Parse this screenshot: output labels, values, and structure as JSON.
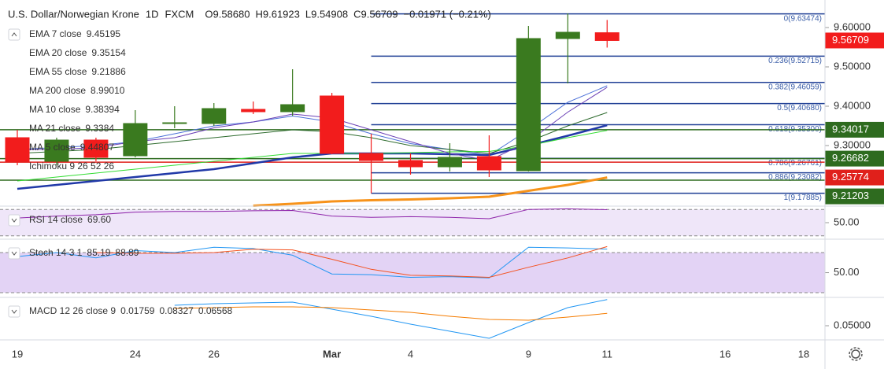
{
  "chart_data": [
    {
      "type": "candlestick",
      "title": "U.S. Dollar/Norwegian Krone",
      "interval": "1D",
      "source": "FXCM",
      "ohlc": [
        "O9.58680",
        "H9.61923",
        "L9.54908",
        "C9.56709"
      ],
      "change": "−0.01971 (−0.21%)",
      "categories": [
        "19",
        null,
        null,
        "24",
        null,
        "26",
        null,
        null,
        "Mar",
        null,
        "4",
        null,
        null,
        "9",
        null,
        "11",
        null,
        null,
        "16",
        null,
        "18"
      ],
      "open": [
        9.32,
        9.26,
        9.314,
        9.274,
        9.356,
        9.356,
        9.392,
        9.386,
        9.426,
        9.28,
        9.262,
        9.246,
        9.272,
        9.236,
        9.572,
        9.5868,
        null,
        null,
        null,
        null,
        null
      ],
      "high": [
        9.34,
        9.32,
        9.32,
        9.39,
        9.4,
        9.408,
        9.412,
        9.494,
        9.434,
        9.33,
        9.28,
        9.306,
        9.326,
        9.604,
        9.636,
        9.61923,
        null,
        null,
        null,
        null,
        null
      ],
      "low": [
        9.25,
        9.25,
        9.26,
        9.27,
        9.344,
        9.35,
        9.38,
        9.376,
        9.278,
        9.179,
        9.226,
        9.234,
        9.22,
        9.234,
        9.458,
        9.54908,
        null,
        null,
        null,
        null,
        null
      ],
      "close": [
        9.26,
        9.314,
        9.27,
        9.356,
        9.358,
        9.394,
        9.386,
        9.404,
        9.28,
        9.262,
        9.246,
        9.27,
        9.238,
        9.572,
        9.588,
        9.56709,
        null,
        null,
        null,
        null,
        null
      ],
      "up_color": "#3a7a1f",
      "down_color": "#f21c1c",
      "ylim": [
        9.146,
        9.67
      ],
      "yticks": [
        {
          "value": 9.6,
          "label": "9.60000"
        },
        {
          "value": 9.5,
          "label": "9.50000"
        },
        {
          "value": 9.4,
          "label": "9.40000"
        },
        {
          "value": 9.3,
          "label": "9.30000"
        }
      ],
      "series": [
        {
          "name": "EMA 7 close",
          "color": "#4a6fd8",
          "width": 1,
          "value_label": "9.45195",
          "values": [
            9.29,
            9.295,
            9.3,
            9.31,
            9.33,
            9.35,
            9.36,
            9.375,
            9.36,
            9.33,
            9.305,
            9.29,
            9.275,
            9.34,
            9.41,
            9.45195,
            null,
            null,
            null,
            null,
            null
          ]
        },
        {
          "name": "EMA 20 close",
          "color": "#2139a8",
          "width": 2.5,
          "value_label": "9.35154",
          "values": [
            9.19,
            9.2,
            9.21,
            9.22,
            9.23,
            9.24,
            9.255,
            9.27,
            9.28,
            9.28,
            9.28,
            9.278,
            9.276,
            9.3,
            9.325,
            9.35154,
            null,
            null,
            null,
            null,
            null
          ]
        },
        {
          "name": "EMA 55 close",
          "color": "#f7931a",
          "width": 3,
          "value_label": "9.21886",
          "values": [
            null,
            null,
            null,
            null,
            null,
            null,
            9.147,
            9.152,
            9.158,
            9.161,
            9.163,
            9.166,
            9.17,
            9.185,
            9.2,
            9.21886,
            null,
            null,
            null,
            null,
            null
          ]
        },
        {
          "name": "MA 200 close",
          "color": "#e0201b",
          "width": 1,
          "value_label": "8.99010"
        },
        {
          "name": "MA 10 close",
          "color": "#2e6b2e",
          "width": 1,
          "value_label": "9.38394",
          "values": [
            9.28,
            9.285,
            9.29,
            9.3,
            9.31,
            9.32,
            9.33,
            9.34,
            9.335,
            9.32,
            9.3,
            9.29,
            9.28,
            9.31,
            9.35,
            9.38394,
            null,
            null,
            null,
            null,
            null
          ]
        },
        {
          "name": "MA 21 close",
          "color": "#33dd33",
          "width": 1,
          "value_label": "9.3384",
          "values": [
            9.21,
            9.22,
            9.23,
            9.24,
            9.25,
            9.26,
            9.27,
            9.28,
            9.28,
            9.28,
            9.282,
            9.284,
            9.285,
            9.3,
            9.32,
            9.3384,
            null,
            null,
            null,
            null,
            null
          ]
        },
        {
          "name": "MA 5 close",
          "color": "#6a3fb5",
          "width": 1,
          "value_label": "9.44807",
          "values": [
            9.29,
            9.29,
            9.295,
            9.31,
            9.32,
            9.345,
            9.36,
            9.38,
            9.37,
            9.34,
            9.31,
            9.28,
            9.262,
            9.31,
            9.385,
            9.44807,
            null,
            null,
            null,
            null,
            null
          ]
        },
        {
          "name": "Ichimoku 9 26 52 26",
          "color": "#9e9e9e"
        }
      ],
      "fib_levels": [
        {
          "value": 9.63474,
          "label": "0(9.63474)"
        },
        {
          "value": 9.52715,
          "label": "0.236(9.52715)"
        },
        {
          "value": 9.46059,
          "label": "0.382(9.46059)"
        },
        {
          "value": 9.4068,
          "label": "0.5(9.40680)"
        },
        {
          "value": 9.353,
          "label": "0.618(9.35300)"
        },
        {
          "value": 9.26761,
          "label": "0.786(9.26761)"
        },
        {
          "value": 9.23082,
          "label": "0.886(9.23082)"
        },
        {
          "value": 9.17885,
          "label": "1(9.17885)"
        }
      ],
      "fib_color": "#1f3f95",
      "price_tags": [
        {
          "value": 9.56709,
          "label": "9.56709",
          "color": "#f21c1c",
          "line": false
        },
        {
          "value": 9.34017,
          "label": "9.34017",
          "color": "#2e6b1f",
          "line": true
        },
        {
          "value": 9.26682,
          "label": "9.26682",
          "color": "#2e6b1f",
          "line": true
        },
        {
          "value": 9.25774,
          "label": "9.25774",
          "color": "#e0201b",
          "line": true
        },
        {
          "value": 9.21203,
          "label": "9.21203",
          "color": "#2e6b1f",
          "line": true
        }
      ]
    },
    {
      "type": "line",
      "title": "RSI 14 close",
      "ylim": [
        25,
        75
      ],
      "yticks": [
        {
          "value": 50,
          "label": "50.00"
        }
      ],
      "bands": [
        30,
        70
      ],
      "band_color": "#efe6f9",
      "series": [
        {
          "color": "#8e24aa",
          "value_label": "69.60",
          "values": [
            57,
            60,
            62,
            66,
            67,
            67,
            68,
            68.5,
            60,
            58,
            59,
            58,
            56,
            70,
            71,
            69.6,
            null,
            null,
            null,
            null,
            null
          ]
        }
      ]
    },
    {
      "type": "line",
      "title": "Stoch 14 3 1",
      "ylim": [
        13,
        100
      ],
      "yticks": [
        {
          "value": 50,
          "label": "50.00"
        }
      ],
      "bands": [
        20,
        80
      ],
      "band_color": "#e3d3f5",
      "series": [
        {
          "color": "#2196f3",
          "value_label": "85.19",
          "values": [
            74,
            80,
            72,
            83,
            80,
            88,
            86,
            76,
            48,
            47,
            43,
            44,
            42,
            88,
            87,
            85.19,
            null,
            null,
            null,
            null,
            null
          ]
        },
        {
          "color": "#f4511e",
          "value_label": "88.89",
          "values": [
            null,
            null,
            80,
            79,
            79,
            80,
            85,
            84,
            70,
            55,
            46,
            45,
            43,
            58,
            72,
            88.89,
            null,
            null,
            null,
            null,
            null
          ]
        }
      ]
    },
    {
      "type": "line",
      "title": "MACD 12 26 close 9",
      "ylim": [
        0.032,
        0.086
      ],
      "yticks": [
        {
          "value": 0.05,
          "label": "0.05000"
        }
      ],
      "series": [
        {
          "color": "#26a69a",
          "value_label": "0.01759"
        },
        {
          "color": "#2196f3",
          "value_label": "0.08327",
          "values": [
            null,
            null,
            null,
            null,
            0.076,
            0.078,
            0.079,
            0.08,
            0.071,
            0.062,
            0.052,
            0.043,
            0.034,
            0.054,
            0.073,
            0.08327,
            null,
            null,
            null,
            null,
            null
          ]
        },
        {
          "color": "#f57c00",
          "value_label": "0.06568",
          "values": [
            null,
            null,
            null,
            null,
            0.072,
            0.073,
            0.074,
            0.074,
            0.073,
            0.07,
            0.067,
            0.062,
            0.058,
            0.057,
            0.061,
            0.06568,
            null,
            null,
            null,
            null,
            null
          ]
        }
      ]
    }
  ]
}
